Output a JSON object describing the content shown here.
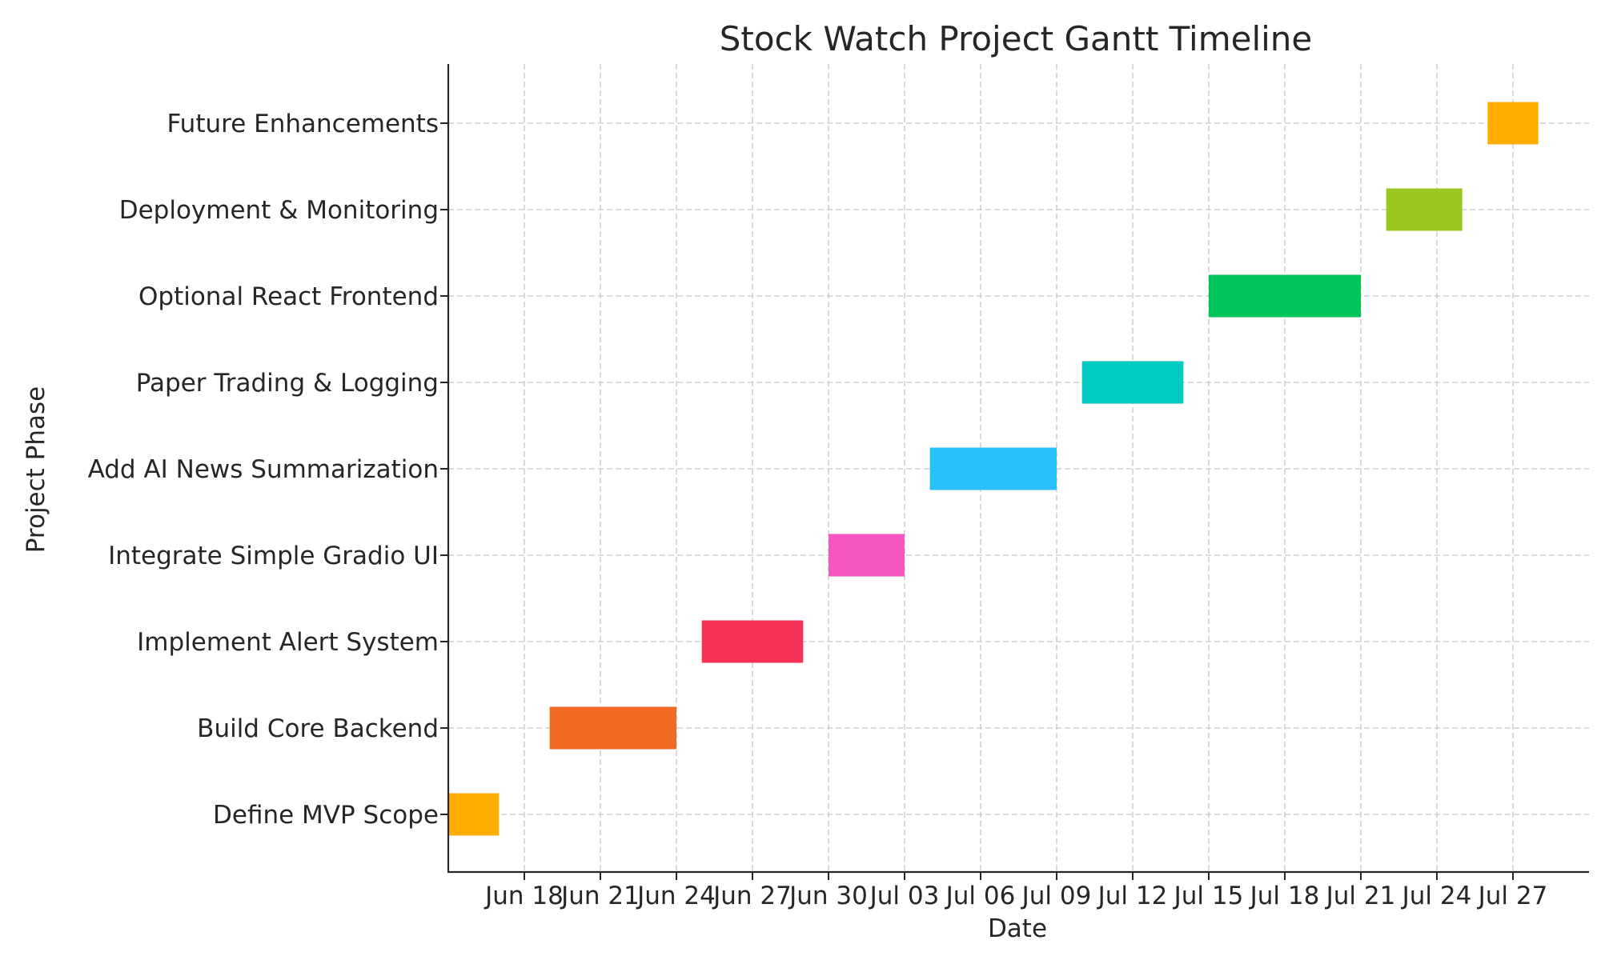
{
  "chart_data": {
    "type": "gantt",
    "title": "Stock Watch Project Gantt Timeline",
    "xlabel": "Date",
    "ylabel": "Project Phase",
    "xlim": [
      "2025-06-15",
      "2025-07-30"
    ],
    "grid": true,
    "x_ticks": [
      {
        "date": "2025-06-18",
        "label": "Jun 18"
      },
      {
        "date": "2025-06-21",
        "label": "Jun 21"
      },
      {
        "date": "2025-06-24",
        "label": "Jun 24"
      },
      {
        "date": "2025-06-27",
        "label": "Jun 27"
      },
      {
        "date": "2025-06-30",
        "label": "Jun 30"
      },
      {
        "date": "2025-07-03",
        "label": "Jul 03"
      },
      {
        "date": "2025-07-06",
        "label": "Jul 06"
      },
      {
        "date": "2025-07-09",
        "label": "Jul 09"
      },
      {
        "date": "2025-07-12",
        "label": "Jul 12"
      },
      {
        "date": "2025-07-15",
        "label": "Jul 15"
      },
      {
        "date": "2025-07-18",
        "label": "Jul 18"
      },
      {
        "date": "2025-07-21",
        "label": "Jul 21"
      },
      {
        "date": "2025-07-24",
        "label": "Jul 24"
      },
      {
        "date": "2025-07-27",
        "label": "Jul 27"
      }
    ],
    "tasks": [
      {
        "name": "Define MVP Scope",
        "start": "2025-06-15",
        "end": "2025-06-17",
        "color": "#FFAE00"
      },
      {
        "name": "Build Core Backend",
        "start": "2025-06-19",
        "end": "2025-06-24",
        "color": "#F26A21"
      },
      {
        "name": "Implement Alert System",
        "start": "2025-06-25",
        "end": "2025-06-29",
        "color": "#F53255"
      },
      {
        "name": "Integrate Simple Gradio UI",
        "start": "2025-06-30",
        "end": "2025-07-03",
        "color": "#F756C1"
      },
      {
        "name": "Add AI News Summarization",
        "start": "2025-07-04",
        "end": "2025-07-09",
        "color": "#29BFFB"
      },
      {
        "name": "Paper Trading & Logging",
        "start": "2025-07-10",
        "end": "2025-07-14",
        "color": "#00CBC1"
      },
      {
        "name": "Optional React Frontend",
        "start": "2025-07-15",
        "end": "2025-07-21",
        "color": "#00C55A"
      },
      {
        "name": "Deployment & Monitoring",
        "start": "2025-07-22",
        "end": "2025-07-25",
        "color": "#9BC81F"
      },
      {
        "name": "Future Enhancements",
        "start": "2025-07-26",
        "end": "2025-07-28",
        "color": "#FFAE00"
      }
    ]
  }
}
